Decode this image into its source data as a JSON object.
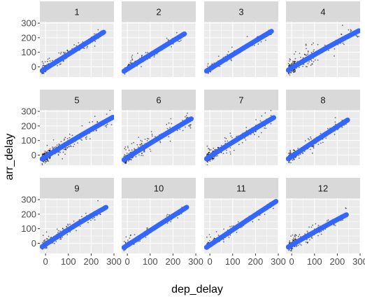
{
  "chart_data": {
    "type": "scatter",
    "xlabel": "dep_delay",
    "ylabel": "arr_delay",
    "xlim": [
      -25,
      300
    ],
    "ylim": [
      -70,
      310
    ],
    "x_ticks": [
      0,
      100,
      200,
      300
    ],
    "y_ticks": [
      0,
      100,
      200,
      300
    ],
    "grid": true,
    "colors": {
      "panel": "#ebebeb",
      "strip": "#d9d9d9",
      "points": "#000000",
      "smooth_line": "#3366ff"
    },
    "facets": [
      {
        "label": "1",
        "max_x": 255,
        "slope": 0.98,
        "intercept": -12,
        "bend": 0,
        "scatter": 28,
        "points_shown": 200
      },
      {
        "label": "2",
        "max_x": 250,
        "slope": 0.98,
        "intercept": -15,
        "bend": 5,
        "scatter": 26,
        "points_shown": 180
      },
      {
        "label": "3",
        "max_x": 270,
        "slope": 0.98,
        "intercept": -14,
        "bend": 8,
        "scatter": 24,
        "points_shown": 200
      },
      {
        "label": "4",
        "max_x": 295,
        "slope": 0.94,
        "intercept": -8,
        "bend": 22,
        "scatter": 45,
        "points_shown": 260
      },
      {
        "label": "5",
        "max_x": 295,
        "slope": 0.98,
        "intercept": -12,
        "bend": 18,
        "scatter": 45,
        "points_shown": 260
      },
      {
        "label": "6",
        "max_x": 280,
        "slope": 1.0,
        "intercept": -18,
        "bend": 15,
        "scatter": 40,
        "points_shown": 250
      },
      {
        "label": "7",
        "max_x": 280,
        "slope": 1.0,
        "intercept": -10,
        "bend": 15,
        "scatter": 40,
        "points_shown": 250
      },
      {
        "label": "8",
        "max_x": 245,
        "slope": 1.05,
        "intercept": -10,
        "bend": 10,
        "scatter": 34,
        "points_shown": 220
      },
      {
        "label": "9",
        "max_x": 265,
        "slope": 1.05,
        "intercept": -8,
        "bend": 30,
        "scatter": 30,
        "points_shown": 220
      },
      {
        "label": "10",
        "max_x": 260,
        "slope": 1.02,
        "intercept": -14,
        "bend": 5,
        "scatter": 24,
        "points_shown": 200
      },
      {
        "label": "11",
        "max_x": 290,
        "slope": 1.05,
        "intercept": -12,
        "bend": 5,
        "scatter": 26,
        "points_shown": 220
      },
      {
        "label": "12",
        "max_x": 240,
        "slope": 0.92,
        "intercept": -12,
        "bend": 20,
        "scatter": 34,
        "points_shown": 220
      }
    ]
  }
}
